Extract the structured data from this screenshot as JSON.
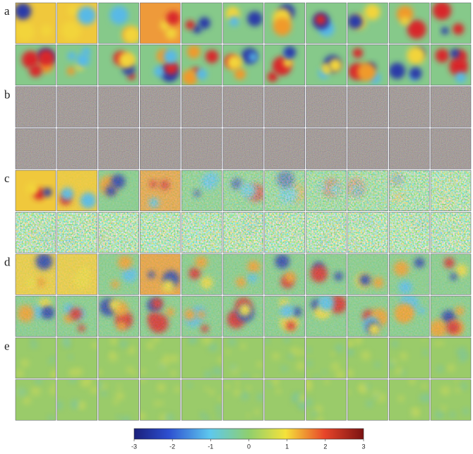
{
  "panels": [
    {
      "label": "a"
    },
    {
      "label": "b"
    },
    {
      "label": "c"
    },
    {
      "label": "d"
    },
    {
      "label": "e"
    }
  ],
  "colorbar": {
    "lim": [
      -3,
      3
    ],
    "ticks": [
      -3,
      -2,
      -1,
      0,
      1,
      2,
      3
    ]
  }
}
